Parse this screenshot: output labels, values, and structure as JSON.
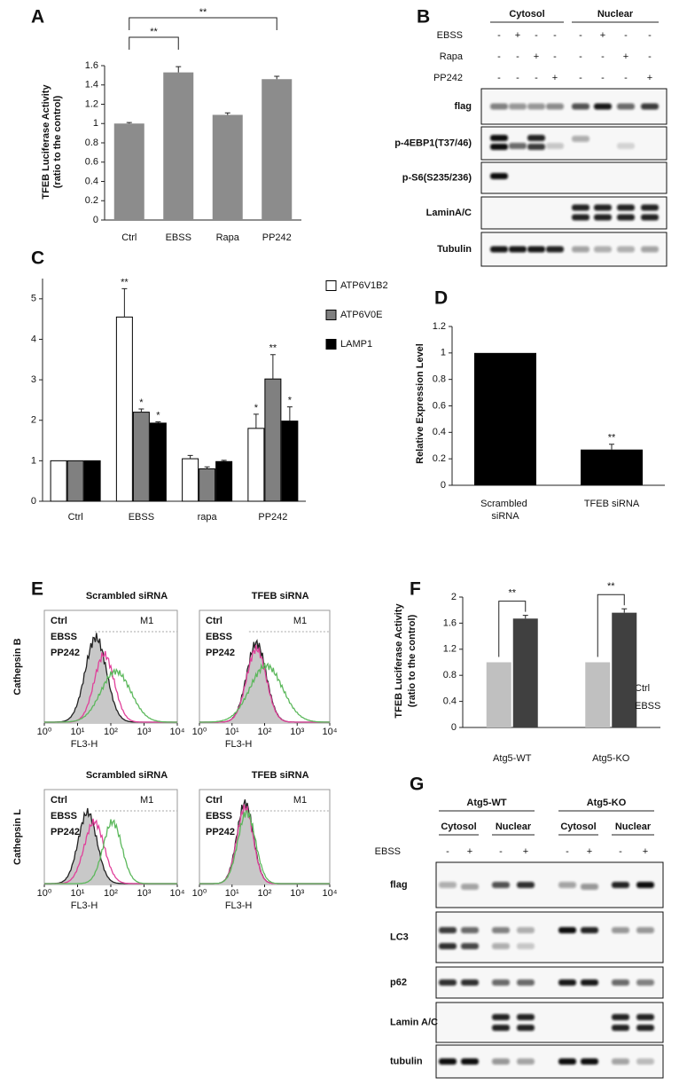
{
  "chart_data": [
    {
      "panel": "A",
      "type": "bar",
      "y_label": [
        "TFEB Luciferase Activity",
        "(ratio to the control)"
      ],
      "categories": [
        "Ctrl",
        "EBSS",
        "Rapa",
        "PP242"
      ],
      "values": [
        1,
        1.53,
        1.09,
        1.46
      ],
      "errors": [
        0.01,
        0.06,
        0.02,
        0.03
      ],
      "significance": [
        null,
        "**",
        null,
        "**"
      ],
      "color": "#8c8c8c",
      "ylim": [
        0,
        1.6
      ],
      "yticks": [
        0,
        0.2,
        0.4,
        0.6,
        0.8,
        1,
        1.2,
        1.4,
        1.6
      ]
    },
    {
      "panel": "C",
      "type": "bar",
      "categories": [
        "Ctrl",
        "EBSS",
        "rapa",
        "PP242"
      ],
      "series": [
        {
          "name": "ATP6V1B2",
          "color": "#ffffff",
          "values": [
            1,
            4.55,
            1.05,
            1.8
          ],
          "errors": [
            null,
            0.7,
            0.08,
            0.35
          ],
          "significance": [
            null,
            "**",
            null,
            "*"
          ]
        },
        {
          "name": "ATP6V0E",
          "color": "#808080",
          "values": [
            1,
            2.2,
            0.8,
            3.02
          ],
          "errors": [
            null,
            0.08,
            0.05,
            0.6
          ],
          "significance": [
            null,
            "*",
            null,
            "**"
          ]
        },
        {
          "name": "LAMP1",
          "color": "#000000",
          "values": [
            1,
            1.93,
            0.98,
            1.98
          ],
          "errors": [
            null,
            0.03,
            0.03,
            0.35
          ],
          "significance": [
            null,
            "*",
            null,
            "*"
          ]
        }
      ],
      "ylim": [
        0,
        5.5
      ],
      "yticks": [
        0,
        1,
        2,
        3,
        4,
        5
      ]
    },
    {
      "panel": "D",
      "type": "bar",
      "y_label": [
        "Relative Expression Level"
      ],
      "categories": [
        "Scrambled siRNA",
        "TFEB siRNA"
      ],
      "values": [
        1,
        0.27
      ],
      "errors": [
        null,
        0.04
      ],
      "significance": [
        null,
        "**"
      ],
      "color": "#000000",
      "ylim": [
        0,
        1.2
      ],
      "yticks": [
        0,
        0.2,
        0.4,
        0.6,
        0.8,
        1,
        1.2
      ]
    },
    {
      "panel": "F",
      "type": "bar",
      "y_label": [
        "TFEB Luciferase Activity",
        "(ratio to the control)"
      ],
      "categories": [
        "Atg5-WT",
        "Atg5-KO"
      ],
      "series": [
        {
          "name": "Ctrl",
          "color": "#c0c0c0",
          "values": [
            1,
            1
          ],
          "errors": [
            null,
            null
          ],
          "significance": [
            null,
            null
          ]
        },
        {
          "name": "EBSS",
          "color": "#404040",
          "values": [
            1.67,
            1.76
          ],
          "errors": [
            0.05,
            0.06
          ],
          "significance": [
            "**",
            "**"
          ]
        }
      ],
      "ylim": [
        0,
        2
      ],
      "yticks": [
        0,
        0.4,
        0.8,
        1.2,
        1.6,
        2
      ]
    }
  ],
  "blots": [
    {
      "panel": "B",
      "groups": [
        "Cytosol",
        "Nuclear"
      ],
      "conditions": [
        {
          "name": "EBSS",
          "signs": [
            "-",
            "+",
            "-",
            "-",
            "-",
            "+",
            "-",
            "-"
          ]
        },
        {
          "name": "Rapa",
          "signs": [
            "-",
            "-",
            "+",
            "-",
            "-",
            "-",
            "+",
            "-"
          ]
        },
        {
          "name": "PP242",
          "signs": [
            "-",
            "-",
            "-",
            "+",
            "-",
            "-",
            "-",
            "+"
          ]
        }
      ],
      "rows": [
        "flag",
        "p-4EBP1(T37/46)",
        "p-S6(S235/236)",
        "LaminA/C",
        "Tubulin"
      ]
    },
    {
      "panel": "G",
      "super_groups": [
        "Atg5-WT",
        "Atg5-KO"
      ],
      "groups": [
        "Cytosol",
        "Nuclear",
        "Cytosol",
        "Nuclear"
      ],
      "conditions": [
        {
          "name": "EBSS",
          "signs": [
            "-",
            "+",
            "-",
            "+",
            "-",
            "+",
            "-",
            "+"
          ]
        }
      ],
      "rows": [
        "flag",
        "LC3",
        "p62",
        "Lamin A/C",
        "tubulin"
      ]
    }
  ],
  "flow": {
    "panel": "E",
    "columns": [
      "Scrambled siRNA",
      "TFEB siRNA"
    ],
    "rows": [
      "Cathepsin B",
      "Cathepsin L"
    ],
    "legend": [
      {
        "name": "Ctrl",
        "color": "#222222"
      },
      {
        "name": "EBSS",
        "color": "#5cb85c"
      },
      {
        "name": "PP242",
        "color": "#e0409a"
      }
    ],
    "gate": "M1",
    "x_label": "FL3-H",
    "xscale": "log",
    "xlim": [
      1,
      10000
    ],
    "xticks": [
      {
        "value": 1,
        "label": "10⁰"
      },
      {
        "value": 10,
        "label": "10¹"
      },
      {
        "value": 100,
        "label": "10²"
      },
      {
        "value": 1000,
        "label": "10³"
      },
      {
        "value": 10000,
        "label": "10⁴"
      }
    ]
  }
}
